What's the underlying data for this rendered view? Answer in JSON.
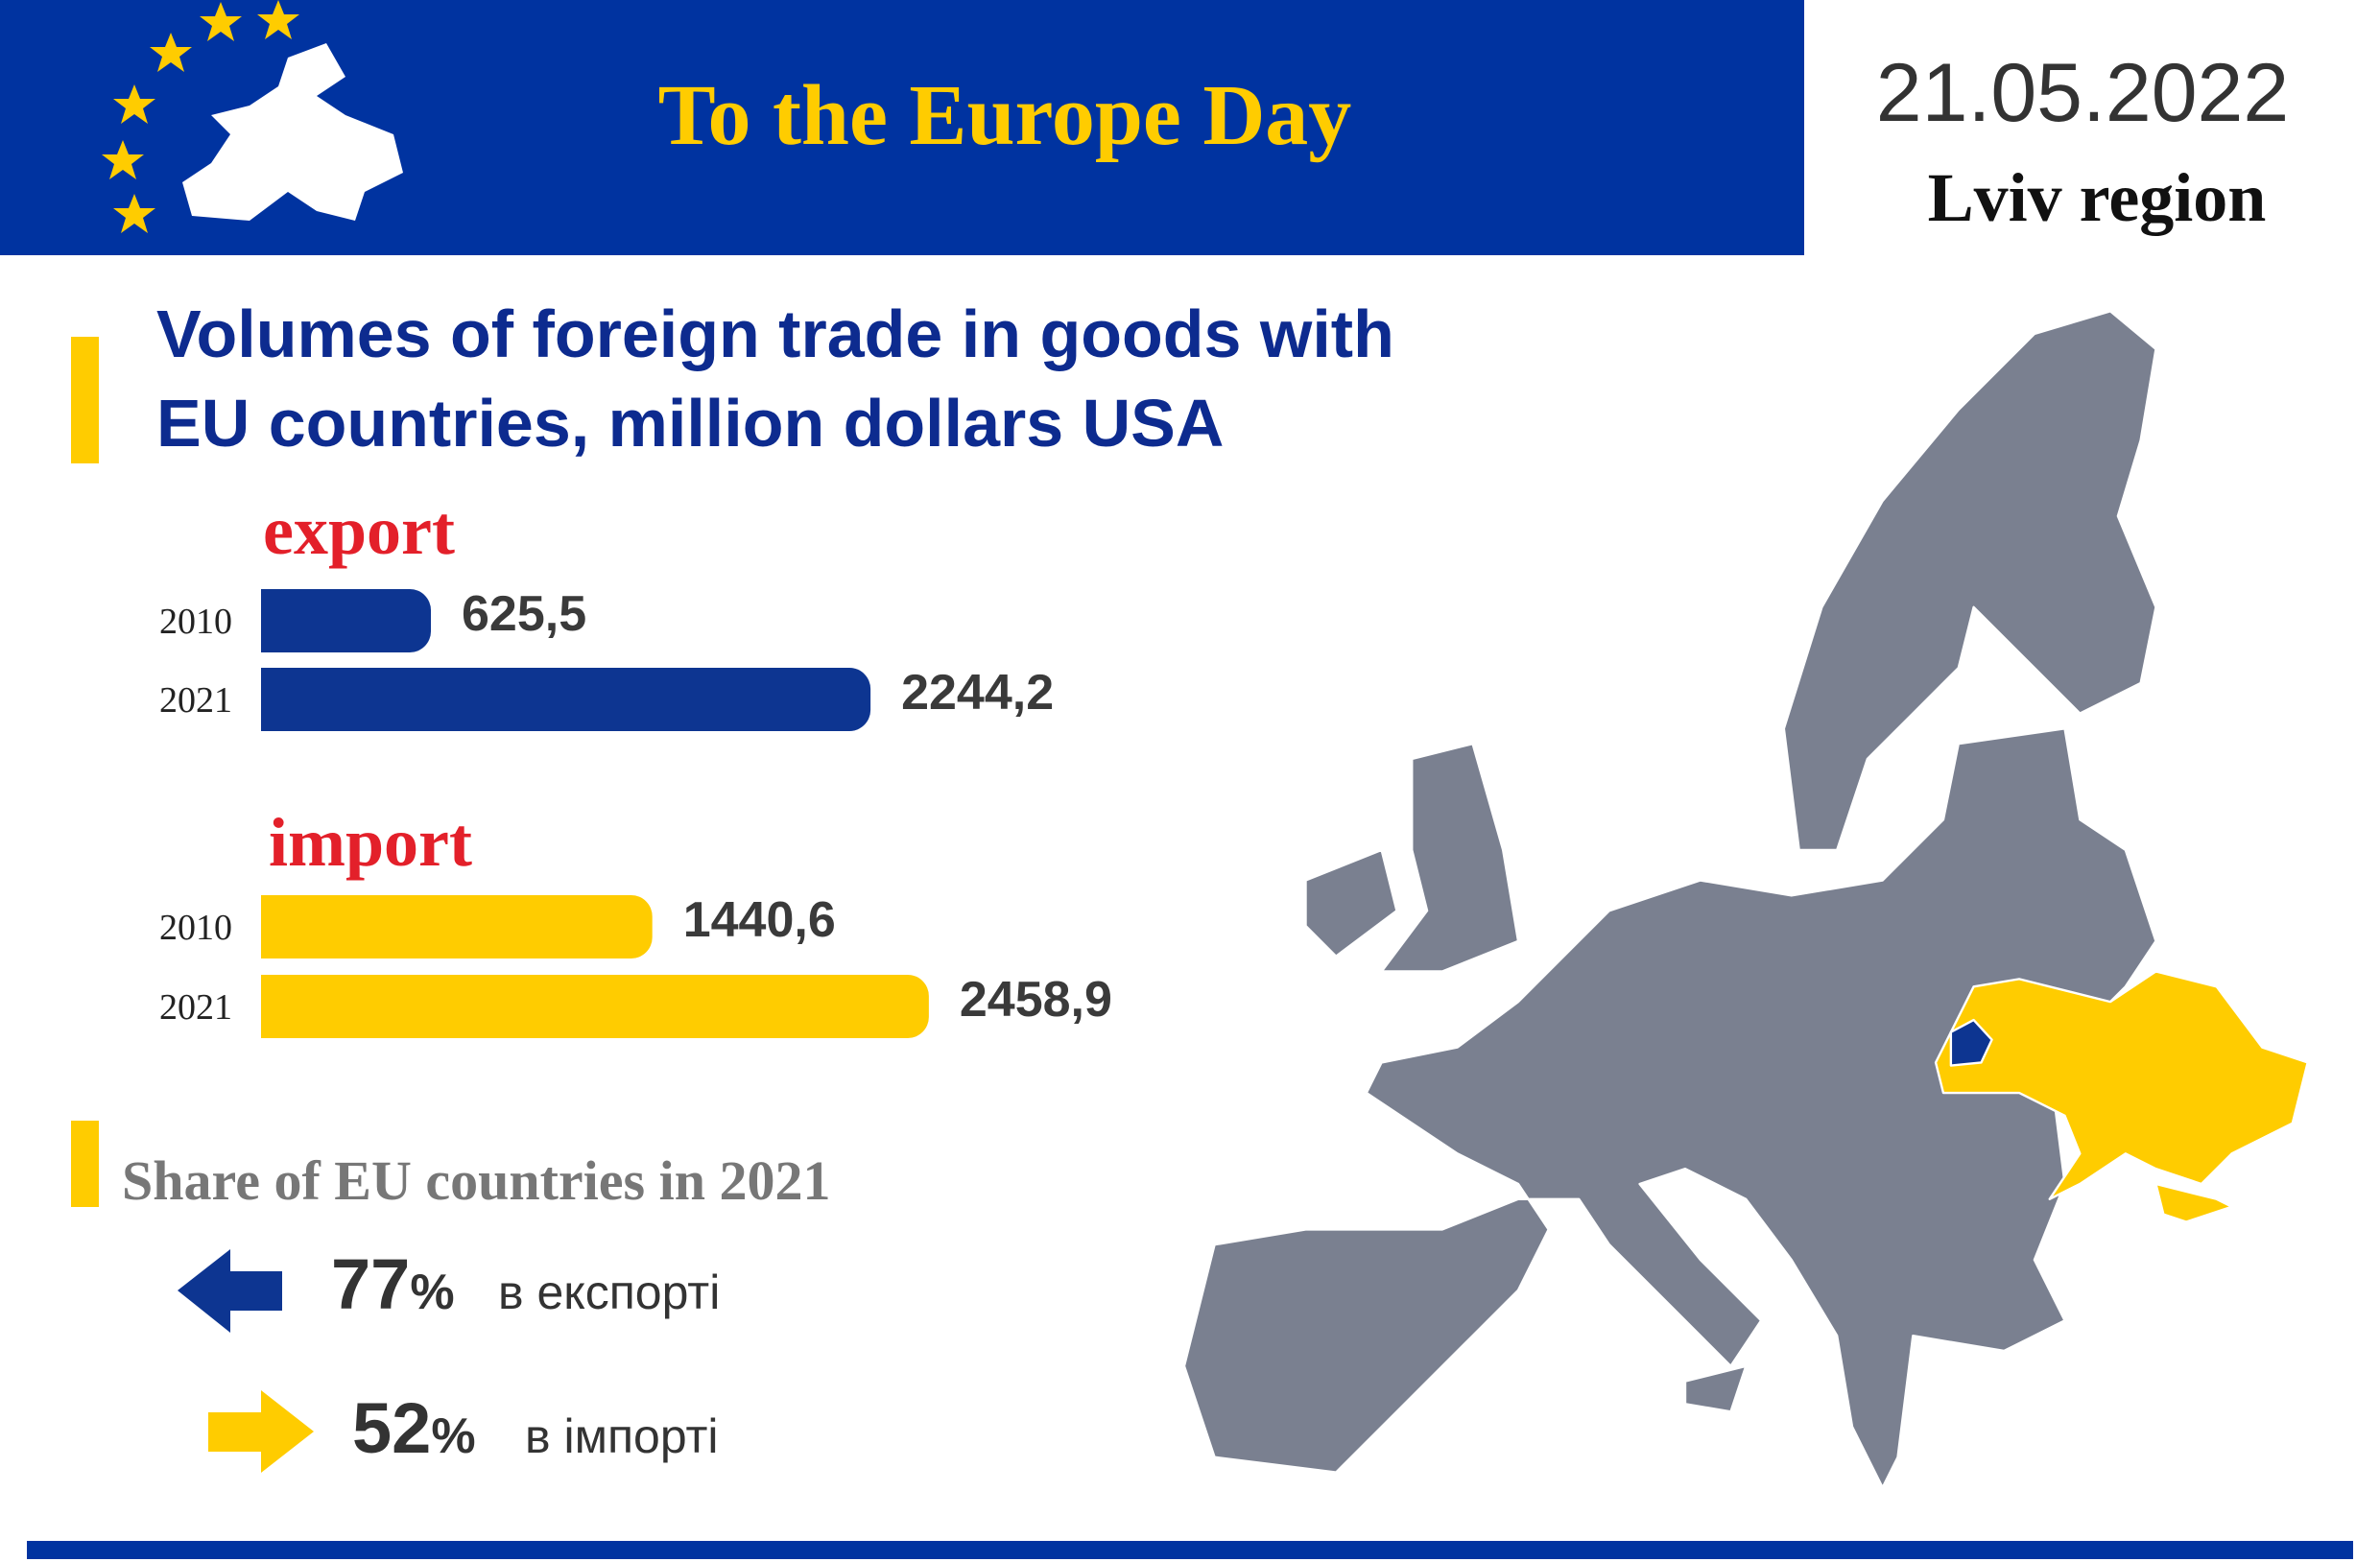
{
  "header": {
    "title": "To the Europe Day",
    "date": "21.05.2022",
    "region": "Lviv region"
  },
  "heading": [
    "Volumes of foreign trade in goods with",
    "EU countries, million dollars USA"
  ],
  "chart_data": [
    {
      "type": "hbar",
      "title": "export",
      "categories": [
        "2010",
        "2021"
      ],
      "values": [
        625.5,
        2244.2
      ],
      "value_labels": [
        "625,5",
        "2244,2"
      ],
      "color": "#0d3591"
    },
    {
      "type": "hbar",
      "title": "import",
      "categories": [
        "2010",
        "2021"
      ],
      "values": [
        1440.6,
        2458.9
      ],
      "value_labels": [
        "1440,6",
        "2458,9"
      ],
      "color": "#ffcc00"
    }
  ],
  "share": {
    "title": "Share of EU countries in 2021",
    "items": [
      {
        "value": 77,
        "unit": "%",
        "label": "в експорті"
      },
      {
        "value": 52,
        "unit": "%",
        "label": "в імпорті"
      }
    ]
  }
}
